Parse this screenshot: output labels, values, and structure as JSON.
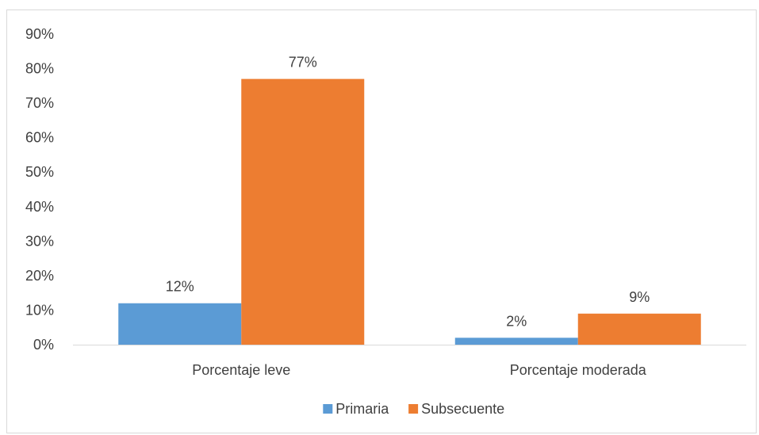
{
  "chart_data": {
    "type": "bar",
    "title": "",
    "xlabel": "",
    "ylabel": "",
    "categories": [
      "Porcentaje leve",
      "Porcentaje moderada"
    ],
    "series": [
      {
        "name": "Primaria",
        "values": [
          0.12,
          0.02
        ],
        "labels": [
          "12%",
          "2%"
        ],
        "color": "#5B9BD5"
      },
      {
        "name": "Subsecuente",
        "values": [
          0.77,
          0.09
        ],
        "labels": [
          "77%",
          "9%"
        ],
        "color": "#ED7D31"
      }
    ],
    "ylim": [
      0,
      0.9
    ],
    "yticks": [
      0,
      0.1,
      0.2,
      0.3,
      0.4,
      0.5,
      0.6,
      0.7,
      0.8,
      0.9
    ],
    "ytick_labels": [
      "0%",
      "10%",
      "20%",
      "30%",
      "40%",
      "50%",
      "60%",
      "70%",
      "80%",
      "90%"
    ],
    "grid": false,
    "legend_position": "bottom"
  }
}
